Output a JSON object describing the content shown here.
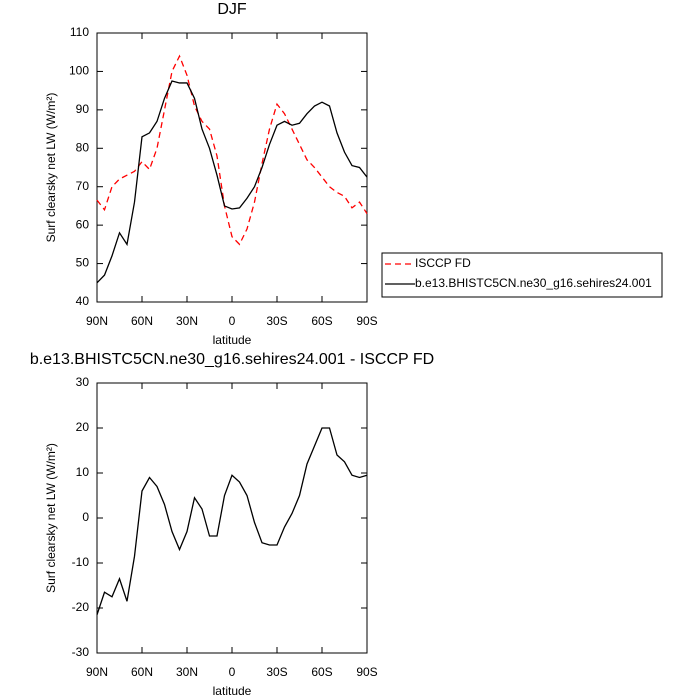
{
  "chart_data": [
    {
      "type": "line",
      "title": "DJF",
      "xlabel": "latitude",
      "ylabel": "Surf clearsky net LW (W/m²)",
      "x": [
        90,
        85,
        80,
        75,
        70,
        65,
        60,
        55,
        50,
        45,
        40,
        35,
        30,
        25,
        20,
        15,
        10,
        5,
        0,
        -5,
        -10,
        -15,
        -20,
        -25,
        -30,
        -35,
        -40,
        -45,
        -50,
        -55,
        -60,
        -65,
        -70,
        -75,
        -80,
        -85,
        -90
      ],
      "series": [
        {
          "name": "ISCCP FD",
          "color": "#ff0000",
          "dash": true,
          "values": [
            66.5,
            64,
            70,
            72,
            73,
            74,
            76.5,
            74.5,
            80,
            90,
            100,
            104,
            99,
            91,
            87,
            85,
            78,
            65,
            57,
            55,
            59,
            66,
            76,
            85,
            91.5,
            89,
            85,
            81,
            77,
            75,
            72.5,
            70,
            68.5,
            67.5,
            64.5,
            66,
            63
          ]
        },
        {
          "name": "b.e13.BHISTC5CN.ne30_g16.sehires24.001",
          "color": "#000000",
          "dash": false,
          "values": [
            45,
            47,
            52,
            58,
            55,
            66,
            83,
            84,
            87,
            93,
            97.5,
            97,
            97,
            93,
            85,
            80,
            73,
            65,
            64.2,
            64.5,
            67,
            70,
            75,
            81,
            86,
            87,
            86,
            86.5,
            89,
            91,
            92,
            91,
            84,
            79,
            75.5,
            75,
            72.5
          ]
        }
      ],
      "xlim": [
        90,
        -90
      ],
      "xticks": [
        {
          "value": 90,
          "label": "90N"
        },
        {
          "value": 60,
          "label": "60N"
        },
        {
          "value": 30,
          "label": "30N"
        },
        0,
        {
          "value": -30,
          "label": "30S"
        },
        {
          "value": -60,
          "label": "60S"
        },
        {
          "value": -90,
          "label": "90S"
        }
      ],
      "ylim": [
        40,
        110
      ],
      "yticks": [
        40,
        50,
        60,
        70,
        80,
        90,
        100,
        110
      ],
      "legend": "outside-right"
    },
    {
      "type": "line",
      "title": "b.e13.BHISTC5CN.ne30_g16.sehires24.001 - ISCCP FD",
      "xlabel": "latitude",
      "ylabel": "Surf clearsky net LW (W/m²)",
      "x": [
        90,
        85,
        80,
        75,
        70,
        65,
        60,
        55,
        50,
        45,
        40,
        35,
        30,
        25,
        20,
        15,
        10,
        5,
        0,
        -5,
        -10,
        -15,
        -20,
        -25,
        -30,
        -35,
        -40,
        -45,
        -50,
        -55,
        -60,
        -65,
        -70,
        -75,
        -80,
        -85,
        -90
      ],
      "color": "#000000",
      "values": [
        -21.5,
        -16.5,
        -17.5,
        -13.5,
        -18.5,
        -8.5,
        6,
        9,
        7,
        3,
        -3,
        -7,
        -3,
        4.5,
        2,
        -4,
        -4,
        5,
        9.5,
        8,
        5,
        -1,
        -5.5,
        -6,
        -6,
        -2,
        1,
        5,
        12,
        16,
        20,
        20,
        14,
        12.5,
        9.5,
        9,
        9.5
      ],
      "xlim": [
        90,
        -90
      ],
      "xticks": [
        {
          "value": 90,
          "label": "90N"
        },
        {
          "value": 60,
          "label": "60N"
        },
        {
          "value": 30,
          "label": "30N"
        },
        0,
        {
          "value": -30,
          "label": "30S"
        },
        {
          "value": -60,
          "label": "60S"
        },
        {
          "value": -90,
          "label": "90S"
        }
      ],
      "ylim": [
        -30,
        30
      ],
      "yticks": [
        -30,
        -20,
        -10,
        0,
        10,
        20,
        30
      ]
    }
  ]
}
